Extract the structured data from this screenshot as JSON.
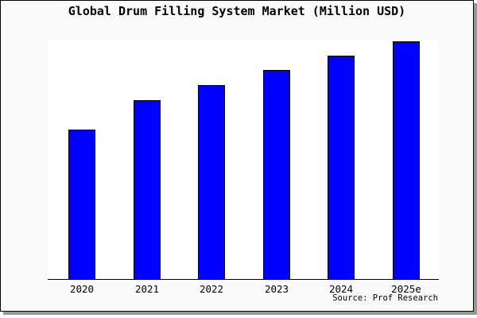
{
  "chart_data": {
    "type": "bar",
    "title": "Global Drum Filling System Market (Million USD)",
    "categories": [
      "2020",
      "2021",
      "2022",
      "2023",
      "2024",
      "2025e"
    ],
    "values": [
      188,
      225,
      244,
      263,
      281,
      299
    ],
    "values_note": "No y-axis scale, gridlines or data labels are shown; values are relative bar heights read in screen pixels (baseline = 0 at x-axis).",
    "xlabel": "",
    "ylabel": "",
    "ylim": [
      0,
      301
    ],
    "grid": false,
    "legend": false,
    "bar_color": "#0000ff",
    "bar_border_color": "#000000",
    "plot_bg": "#ffffff",
    "frame_bg": "#fafafa",
    "source": "Source: Prof Research"
  }
}
